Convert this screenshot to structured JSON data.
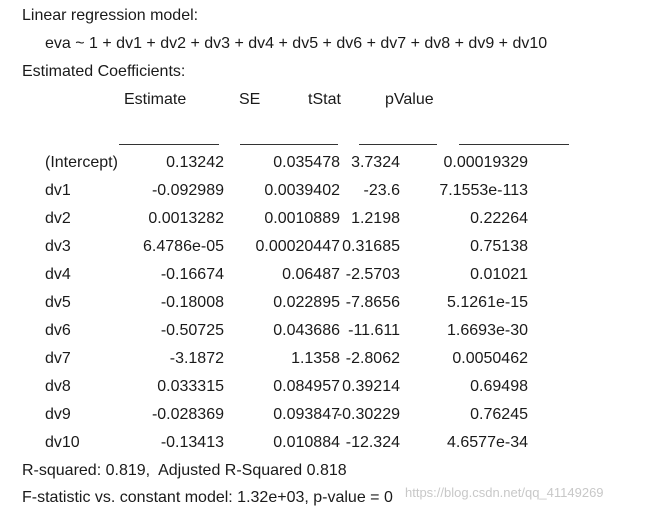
{
  "header": {
    "model_title": "Linear regression model:",
    "formula": "eva ~ 1 + dv1 + dv2 + dv3 + dv4 + dv5 + dv6 + dv7 + dv8 + dv9 + dv10",
    "coef_title": "Estimated Coefficients:"
  },
  "table": {
    "columns": [
      "Estimate",
      "SE",
      "tStat",
      "pValue"
    ],
    "rows": [
      {
        "name": "(Intercept)",
        "estimate": "0.13242",
        "se": "0.035478",
        "tstat": "3.7324",
        "pvalue": "0.00019329"
      },
      {
        "name": "dv1",
        "estimate": "-0.092989",
        "se": "0.0039402",
        "tstat": "-23.6",
        "pvalue": "7.1553e-113"
      },
      {
        "name": "dv2",
        "estimate": "0.0013282",
        "se": "0.0010889",
        "tstat": "1.2198",
        "pvalue": "0.22264"
      },
      {
        "name": "dv3",
        "estimate": "6.4786e-05",
        "se": "0.00020447",
        "tstat": "0.31685",
        "pvalue": "0.75138"
      },
      {
        "name": "dv4",
        "estimate": "-0.16674",
        "se": "0.06487",
        "tstat": "-2.5703",
        "pvalue": "0.01021"
      },
      {
        "name": "dv5",
        "estimate": "-0.18008",
        "se": "0.022895",
        "tstat": "-7.8656",
        "pvalue": "5.1261e-15"
      },
      {
        "name": "dv6",
        "estimate": "-0.50725",
        "se": "0.043686",
        "tstat": "-11.611",
        "pvalue": "1.6693e-30"
      },
      {
        "name": "dv7",
        "estimate": "-3.1872",
        "se": "1.1358",
        "tstat": "-2.8062",
        "pvalue": "0.0050462"
      },
      {
        "name": "dv8",
        "estimate": "0.033315",
        "se": "0.084957",
        "tstat": "0.39214",
        "pvalue": "0.69498"
      },
      {
        "name": "dv9",
        "estimate": "-0.028369",
        "se": "0.093847",
        "tstat": "-0.30229",
        "pvalue": "0.76245"
      },
      {
        "name": "dv10",
        "estimate": "-0.13413",
        "se": "0.010884",
        "tstat": "-12.324",
        "pvalue": "4.6577e-34"
      }
    ]
  },
  "footer": {
    "r_squared": "R-squared: 0.819,  Adjusted R-Squared 0.818",
    "f_statistic": "F-statistic vs. constant model: 1.32e+03, p-value = 0"
  },
  "watermark": "https://blog.csdn.net/qq_41149269"
}
